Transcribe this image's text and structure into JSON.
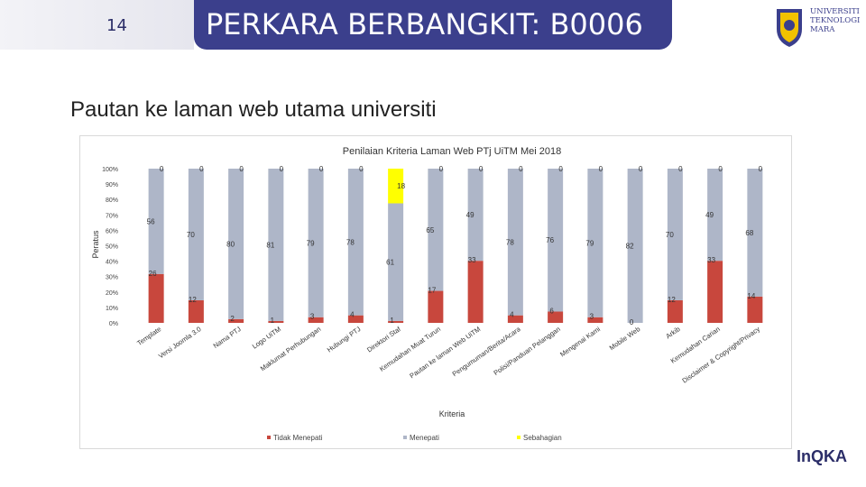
{
  "slide": {
    "number": "14",
    "title": "PERKARA BERBANGKIT: B0006",
    "subtitle": "Pautan ke laman web utama universiti",
    "logo_text": "UNIVERSITI\nTEKNOLOGI\nMARA",
    "footer_logo": "InQKA"
  },
  "colors": {
    "brand": "#3b3f8c",
    "tidak_menepati": "#c8473d",
    "menepati": "#aeb6c8",
    "sebahagian": "#ffff00"
  },
  "chart_data": {
    "type": "bar",
    "stacked": true,
    "percent": true,
    "title": "Penilaian Kriteria Laman Web PTj UiTM Mei 2018",
    "xlabel": "Kriteria",
    "ylabel": "Peratus",
    "ylim": [
      0,
      100
    ],
    "yticks": [
      "0%",
      "10%",
      "20%",
      "30%",
      "40%",
      "50%",
      "60%",
      "70%",
      "80%",
      "90%",
      "100%"
    ],
    "legend_position": "bottom",
    "categories": [
      "Template",
      "Versi Joomla 3.0",
      "Nama PTJ",
      "Logo UiTM",
      "Maklumat Perhubungan",
      "Hubungi PTJ",
      "Direktori Staf",
      "Kemudahan Muat Turun",
      "Pautan ke laman Web UiTM",
      "Pengumuman/Berita/Acara",
      "Polisi/Panduan Pelanggan",
      "Mengenai Kami",
      "Mobile Web",
      "Arkib",
      "Kemudahan Carian",
      "Disclaimer & Copyright/Privacy"
    ],
    "series": [
      {
        "name": "Tidak Menepati",
        "values": [
          26,
          12,
          2,
          1,
          3,
          4,
          1,
          17,
          33,
          4,
          6,
          3,
          0,
          12,
          33,
          14
        ]
      },
      {
        "name": "Menepati",
        "values": [
          56,
          70,
          80,
          81,
          79,
          78,
          61,
          65,
          49,
          78,
          76,
          79,
          82,
          70,
          49,
          68
        ]
      },
      {
        "name": "Sebahagian",
        "values": [
          0,
          0,
          0,
          0,
          0,
          0,
          18,
          0,
          0,
          0,
          0,
          0,
          0,
          0,
          0,
          0
        ]
      }
    ],
    "value_labels": {
      "tidak_menepati": [
        "26",
        "12",
        "2",
        "1",
        "3",
        "4",
        "1",
        "17",
        "33",
        "4",
        "6",
        "3",
        "0",
        "12",
        "33",
        "14"
      ],
      "menepati": [
        "56",
        "70",
        "80",
        "81",
        "79",
        "78",
        "61",
        "65",
        "49",
        "78",
        "76",
        "79",
        "82",
        "70",
        "49",
        "68"
      ],
      "sebahagian": [
        "0",
        "0",
        "0",
        "0",
        "0",
        "0",
        "18",
        "0",
        "0",
        "0",
        "0",
        "0",
        "0",
        "0",
        "0",
        "0"
      ]
    }
  }
}
